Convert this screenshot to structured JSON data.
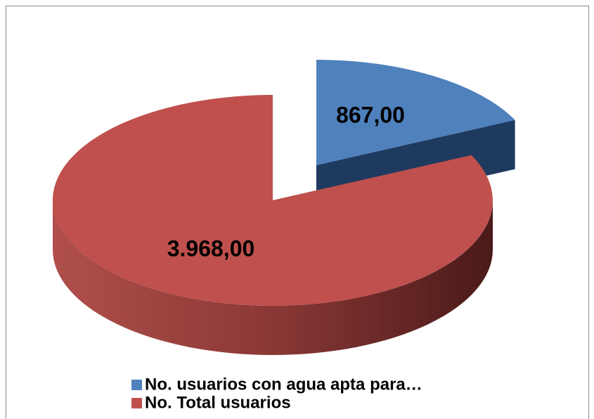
{
  "chart_data": {
    "type": "pie",
    "categories": [
      "No. usuarios con agua apta para…",
      "No. Total usuarios"
    ],
    "values": [
      867,
      3968
    ],
    "value_labels": [
      "867,00",
      "3.968,00"
    ],
    "colors": [
      "#4f81bd",
      "#c0504d"
    ],
    "side_colors": [
      "#1f3a5f",
      "#5a1e1c"
    ],
    "legend": "bottom"
  }
}
